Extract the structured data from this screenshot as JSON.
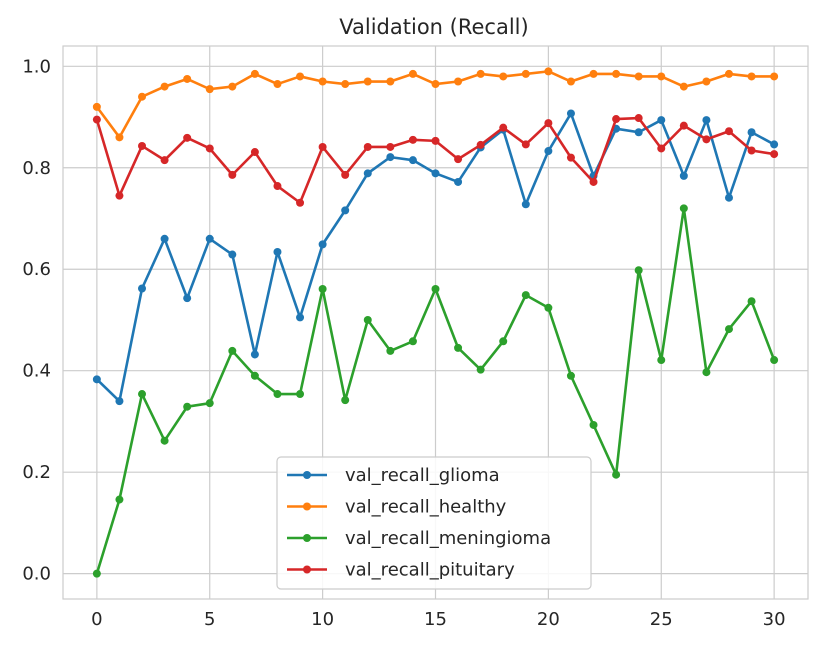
{
  "chart_data": {
    "type": "line",
    "title": "Validation (Recall)",
    "xlabel": "",
    "ylabel": "",
    "xlim": [
      -1.5,
      31.5
    ],
    "ylim": [
      -0.05,
      1.04
    ],
    "xticks": [
      0,
      5,
      10,
      15,
      20,
      25,
      30
    ],
    "yticks": [
      0.0,
      0.2,
      0.4,
      0.6,
      0.8,
      1.0
    ],
    "grid": true,
    "legend_position": "bottom-center",
    "x": [
      0,
      1,
      2,
      3,
      4,
      5,
      6,
      7,
      8,
      9,
      10,
      11,
      12,
      13,
      14,
      15,
      16,
      17,
      18,
      19,
      20,
      21,
      22,
      23,
      24,
      25,
      26,
      27,
      28,
      29,
      30
    ],
    "series": [
      {
        "name": "val_recall_glioma",
        "color": "#1f77b4",
        "values": [
          0.383,
          0.34,
          0.562,
          0.66,
          0.543,
          0.66,
          0.629,
          0.432,
          0.634,
          0.505,
          0.649,
          0.716,
          0.789,
          0.821,
          0.815,
          0.789,
          0.772,
          0.84,
          0.875,
          0.728,
          0.833,
          0.907,
          0.784,
          0.877,
          0.87,
          0.894,
          0.784,
          0.894,
          0.741,
          0.87,
          0.846
        ]
      },
      {
        "name": "val_recall_healthy",
        "color": "#ff7f0e",
        "values": [
          0.92,
          0.86,
          0.94,
          0.96,
          0.975,
          0.955,
          0.96,
          0.985,
          0.965,
          0.98,
          0.97,
          0.965,
          0.97,
          0.97,
          0.985,
          0.965,
          0.97,
          0.985,
          0.98,
          0.985,
          0.99,
          0.97,
          0.985,
          0.985,
          0.98,
          0.98,
          0.96,
          0.97,
          0.985,
          0.98,
          0.98
        ]
      },
      {
        "name": "val_recall_meningioma",
        "color": "#2ca02c",
        "values": [
          0.0,
          0.146,
          0.354,
          0.262,
          0.329,
          0.336,
          0.439,
          0.39,
          0.354,
          0.354,
          0.561,
          0.342,
          0.5,
          0.439,
          0.458,
          0.561,
          0.445,
          0.402,
          0.458,
          0.549,
          0.524,
          0.39,
          0.293,
          0.195,
          0.598,
          0.421,
          0.72,
          0.397,
          0.482,
          0.537,
          0.421
        ]
      },
      {
        "name": "val_recall_pituitary",
        "color": "#d62728",
        "values": [
          0.895,
          0.745,
          0.843,
          0.815,
          0.859,
          0.838,
          0.786,
          0.831,
          0.764,
          0.731,
          0.841,
          0.786,
          0.841,
          0.841,
          0.855,
          0.853,
          0.817,
          0.845,
          0.879,
          0.846,
          0.888,
          0.82,
          0.772,
          0.896,
          0.898,
          0.838,
          0.883,
          0.856,
          0.872,
          0.834,
          0.827
        ]
      }
    ]
  }
}
